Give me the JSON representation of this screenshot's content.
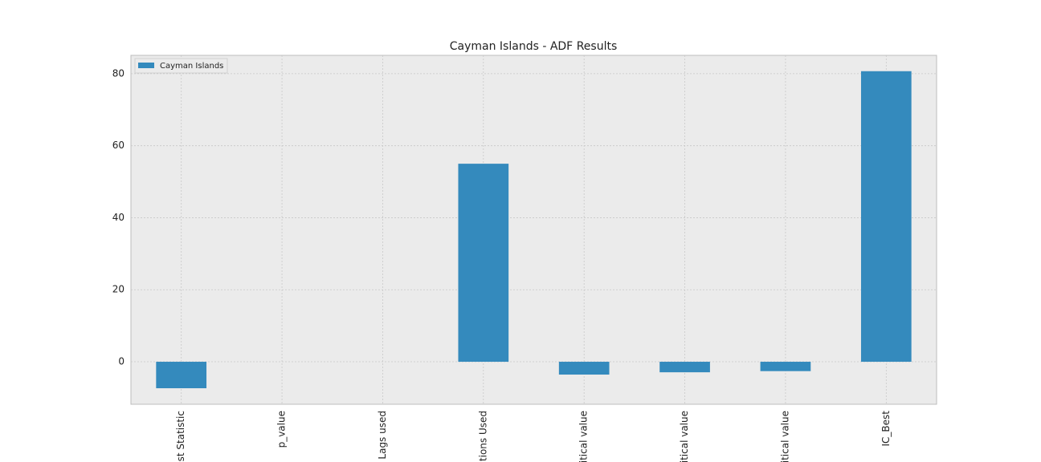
{
  "chart_data": {
    "type": "bar",
    "title": "Cayman Islands - ADF Results",
    "categories": [
      "est Statistic",
      "p_value",
      "Lags used",
      "ations Used",
      "ritical value",
      "ritical value",
      "ritical value",
      "IC_Best"
    ],
    "series": [
      {
        "name": "Cayman Islands",
        "color": "#348abd",
        "values": [
          -7.35,
          0,
          0,
          55,
          -3.56,
          -2.92,
          -2.6,
          80.7
        ]
      }
    ],
    "ylim": [
      -11.8,
      85.1
    ],
    "yticks": [
      0,
      20,
      40,
      60,
      80
    ],
    "grid": true,
    "legend": "upper left"
  }
}
